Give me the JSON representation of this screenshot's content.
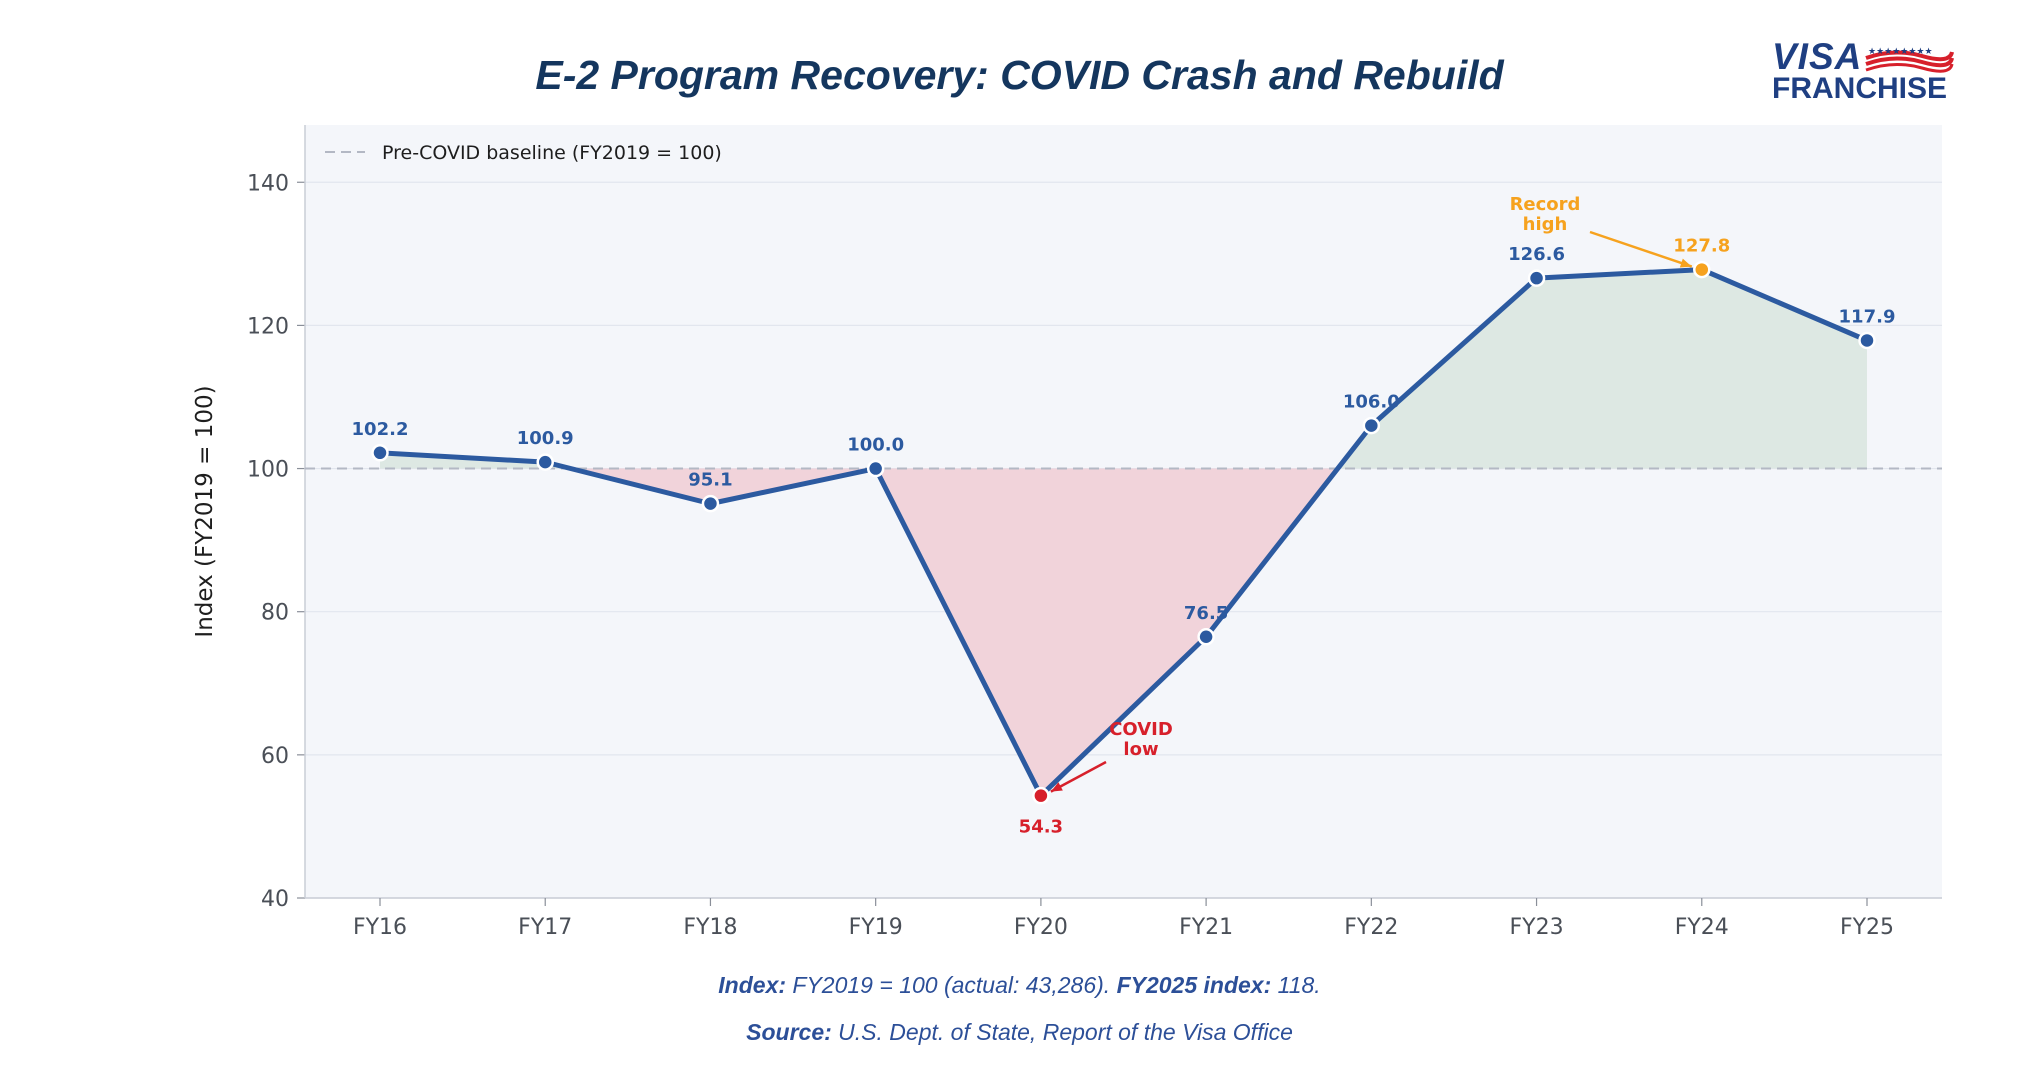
{
  "chart_data": {
    "type": "line",
    "title": "E-2 Program Recovery: COVID Crash and Rebuild",
    "ylabel": "Index (FY2019 = 100)",
    "xlabel": "",
    "categories": [
      "FY16",
      "FY17",
      "FY18",
      "FY19",
      "FY20",
      "FY21",
      "FY22",
      "FY23",
      "FY24",
      "FY25"
    ],
    "series": [
      {
        "name": "",
        "values": [
          102.2,
          100.9,
          95.1,
          100.0,
          54.3,
          76.5,
          106.0,
          126.6,
          127.8,
          117.9
        ],
        "labels": [
          "102.2",
          "100.9",
          "95.1",
          "100.0",
          "54.3",
          "76.5",
          "106.0",
          "126.6",
          "127.8",
          "117.9"
        ]
      }
    ],
    "ylim": [
      40,
      148
    ],
    "yticks": [
      40,
      60,
      80,
      100,
      120,
      140
    ],
    "baseline": {
      "value": 100,
      "legend_label": "Pre-COVID baseline (FY2019 = 100)"
    },
    "legend_position": "top-left",
    "grid": true,
    "annotations": [
      {
        "text_lines": [
          "COVID",
          "low"
        ],
        "target": "FY20",
        "color": "#d7202b"
      },
      {
        "text_lines": [
          "Record",
          "high"
        ],
        "target": "FY24",
        "color": "#f6a21e"
      }
    ],
    "colors": {
      "line": "#2c5aa0",
      "below_fill": "#f1d3da",
      "above_fill": "#dde8e3",
      "baseline": "#b3b8c4",
      "plot_bg": "#f4f6fa",
      "low": "#d7202b",
      "high": "#f6a21e"
    }
  },
  "logo": {
    "line1": "VISA",
    "line2": "FRANCHISE"
  },
  "footnotes": {
    "line1_label": "Index:",
    "line1_text": " FY2019 = 100 (actual: 43,286). ",
    "line1_label2": "FY2025 index:",
    "line1_text2": " 118.",
    "line2_label": "Source:",
    "line2_text": " U.S. Dept. of State, Report of the Visa Office"
  }
}
